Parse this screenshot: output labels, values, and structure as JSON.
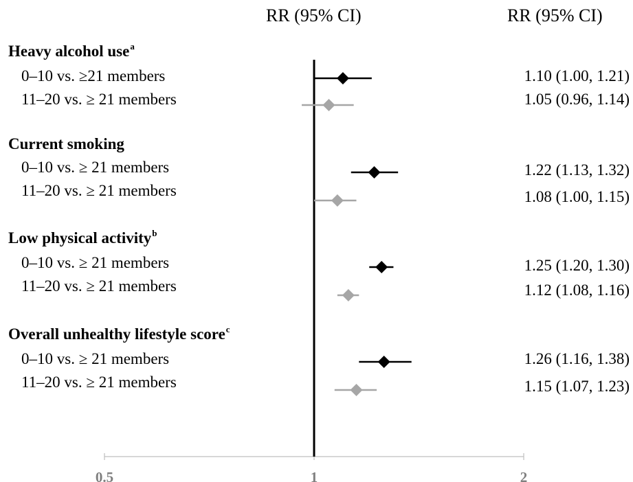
{
  "chart_data": {
    "type": "forest",
    "column_headers": [
      "RR (95% CI)",
      "RR (95% CI)"
    ],
    "x_axis": {
      "scale": "log",
      "ticks": [
        0.5,
        1,
        2
      ],
      "tick_labels": [
        "0.5",
        "1",
        "2"
      ],
      "range": [
        0.5,
        2
      ],
      "reference_line": 1
    },
    "series_colors": {
      "0-10": "#000000",
      "11-20": "#a6a6a6"
    },
    "groups": [
      {
        "title": "Heavy alcohol use",
        "superscript": "a",
        "rows": [
          {
            "label": "0–10 vs. ≥21 members",
            "rr": 1.1,
            "lo": 1.0,
            "hi": 1.21,
            "ci_text": "1.10 (1.00, 1.21)",
            "series": "0-10"
          },
          {
            "label": "11–20 vs. ≥ 21 members",
            "rr": 1.05,
            "lo": 0.96,
            "hi": 1.14,
            "ci_text": "1.05 (0.96, 1.14)",
            "series": "11-20"
          }
        ]
      },
      {
        "title": "Current smoking",
        "superscript": "",
        "rows": [
          {
            "label": "0–10 vs. ≥ 21 members",
            "rr": 1.22,
            "lo": 1.13,
            "hi": 1.32,
            "ci_text": "1.22 (1.13, 1.32)",
            "series": "0-10"
          },
          {
            "label": "11–20 vs. ≥ 21 members",
            "rr": 1.08,
            "lo": 1.0,
            "hi": 1.15,
            "ci_text": "1.08 (1.00, 1.15)",
            "series": "11-20"
          }
        ]
      },
      {
        "title": "Low physical activity",
        "superscript": "b",
        "rows": [
          {
            "label": "0–10 vs. ≥ 21 members",
            "rr": 1.25,
            "lo": 1.2,
            "hi": 1.3,
            "ci_text": "1.25 (1.20, 1.30)",
            "series": "0-10"
          },
          {
            "label": "11–20 vs. ≥ 21 members",
            "rr": 1.12,
            "lo": 1.08,
            "hi": 1.16,
            "ci_text": "1.12 (1.08, 1.16)",
            "series": "11-20"
          }
        ]
      },
      {
        "title": "Overall unhealthy lifestyle score",
        "superscript": "c",
        "rows": [
          {
            "label": "0–10 vs. ≥ 21 members",
            "rr": 1.26,
            "lo": 1.16,
            "hi": 1.38,
            "ci_text": "1.26 (1.16, 1.38)",
            "series": "0-10"
          },
          {
            "label": "11–20 vs. ≥ 21 members",
            "rr": 1.15,
            "lo": 1.07,
            "hi": 1.23,
            "ci_text": "1.15 (1.07, 1.23)",
            "series": "11-20"
          }
        ]
      }
    ]
  }
}
